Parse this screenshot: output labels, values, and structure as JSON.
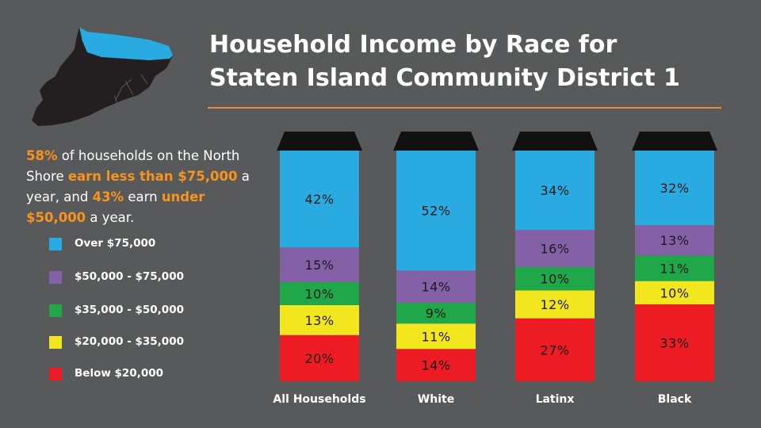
{
  "title_line1": "Household Income by Race for",
  "title_line2": "Staten Island Community District 1",
  "summary": {
    "p1": "58%",
    "p2": " of households on the North Shore ",
    "p3": "earn less than $75,000",
    "p4": " a year, and ",
    "p5": "43%",
    "p6": " earn ",
    "p7": "under $50,000",
    "p8": " a year."
  },
  "colors": {
    "background": "#58595b",
    "accent": "#f7941d",
    "over_75k": "#29abe2",
    "k50_75": "#8461a6",
    "k35_50": "#1fa74a",
    "k20_35": "#f2e71f",
    "below_20k": "#ed1c24",
    "map_land": "#231f20",
    "map_highlight": "#29abe2"
  },
  "legend": [
    {
      "label": "Over $75,000",
      "color": "#29abe2"
    },
    {
      "label": "$50,000 - $75,000",
      "color": "#8461a6"
    },
    {
      "label": "$35,000 - $50,000",
      "color": "#1fa74a"
    },
    {
      "label": "$20,000 - $35,000",
      "color": "#f2e71f"
    },
    {
      "label": "Below $20,000",
      "color": "#ed1c24"
    }
  ],
  "chart_data": {
    "type": "bar",
    "stacked": true,
    "categories": [
      "All Households",
      "White",
      "Latinx",
      "Black"
    ],
    "series": [
      {
        "name": "Below $20,000",
        "values": [
          20,
          14,
          27,
          33
        ]
      },
      {
        "name": "$20,000 - $35,000",
        "values": [
          13,
          11,
          12,
          10
        ]
      },
      {
        "name": "$35,000 - $50,000",
        "values": [
          10,
          9,
          10,
          11
        ]
      },
      {
        "name": "$50,000 - $75,000",
        "values": [
          15,
          14,
          16,
          13
        ]
      },
      {
        "name": "Over $75,000",
        "values": [
          42,
          52,
          34,
          32
        ]
      }
    ]
  }
}
